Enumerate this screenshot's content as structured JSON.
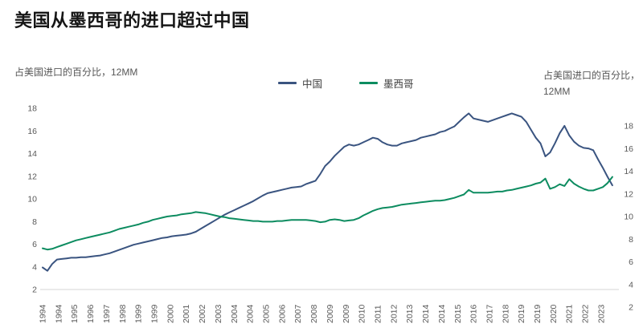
{
  "page": {
    "title": "美国从墨西哥的进口超过中国"
  },
  "chart": {
    "left_axis_label": "占美国进口的百分比，12MM",
    "right_axis_label_line1": "占美国进口的百分比，",
    "right_axis_label_line2": "12MM"
  },
  "chart_data": {
    "type": "line",
    "title": "美国从墨西哥的进口超过中国",
    "xlabel": "",
    "ylabel_left": "占美国进口的百分比，12MM",
    "ylabel_right": "占美国进口的百分比，12MM",
    "grid": false,
    "legend_position": "top-center",
    "x_start": 1994,
    "x_step": 0.25,
    "x_tick_interval_years": 0.8333,
    "x_tick_labels": [
      "1994",
      "1994",
      "1995",
      "1996",
      "1997",
      "1998",
      "1999",
      "1999",
      "2000",
      "2001",
      "2002",
      "2003",
      "2004",
      "2004",
      "2005",
      "2006",
      "2007",
      "2008",
      "2009",
      "2009",
      "2010",
      "2011",
      "2012",
      "2013",
      "2014",
      "2014",
      "2015",
      "2016",
      "2017",
      "2018",
      "2019",
      "2019",
      "2020",
      "2021",
      "2022",
      "2023"
    ],
    "left_axis": {
      "ticks": [
        18,
        16,
        14,
        12,
        10,
        8,
        6,
        4,
        2
      ],
      "range": [
        2,
        18
      ]
    },
    "right_axis": {
      "ticks": [
        18,
        16,
        14,
        12,
        10,
        8,
        6,
        4,
        2
      ],
      "range": [
        2,
        18
      ],
      "offset_down_vs_left_units": 1.56
    },
    "series": [
      {
        "name": "中国",
        "axis": "left",
        "color": "#3a5480",
        "values": [
          3.95,
          3.65,
          4.25,
          4.65,
          4.7,
          4.75,
          4.8,
          4.8,
          4.85,
          4.85,
          4.9,
          4.95,
          5.0,
          5.1,
          5.2,
          5.35,
          5.5,
          5.65,
          5.8,
          5.95,
          6.05,
          6.15,
          6.25,
          6.35,
          6.45,
          6.55,
          6.6,
          6.7,
          6.75,
          6.8,
          6.85,
          6.95,
          7.1,
          7.35,
          7.6,
          7.85,
          8.1,
          8.35,
          8.6,
          8.8,
          9.0,
          9.2,
          9.4,
          9.6,
          9.8,
          10.05,
          10.3,
          10.5,
          10.6,
          10.7,
          10.8,
          10.9,
          11.0,
          11.05,
          11.1,
          11.3,
          11.45,
          11.6,
          12.2,
          12.9,
          13.3,
          13.8,
          14.2,
          14.6,
          14.8,
          14.7,
          14.8,
          15.0,
          15.2,
          15.4,
          15.3,
          15.0,
          14.8,
          14.7,
          14.7,
          14.9,
          15.0,
          15.1,
          15.2,
          15.4,
          15.5,
          15.6,
          15.7,
          15.9,
          16.0,
          16.2,
          16.4,
          16.8,
          17.2,
          17.55,
          17.1,
          17.0,
          16.9,
          16.8,
          16.95,
          17.1,
          17.25,
          17.4,
          17.55,
          17.4,
          17.25,
          16.8,
          16.1,
          15.4,
          14.9,
          13.75,
          14.1,
          14.9,
          15.8,
          16.45,
          15.6,
          15.05,
          14.7,
          14.5,
          14.45,
          14.3,
          13.5,
          12.75,
          11.95,
          11.2
        ]
      },
      {
        "name": "墨西哥",
        "axis": "right",
        "color": "#0d8c60",
        "values": [
          7.2,
          7.08,
          7.15,
          7.3,
          7.45,
          7.6,
          7.75,
          7.9,
          8.0,
          8.1,
          8.2,
          8.3,
          8.4,
          8.5,
          8.6,
          8.75,
          8.9,
          9.0,
          9.1,
          9.2,
          9.3,
          9.45,
          9.55,
          9.7,
          9.8,
          9.9,
          10.0,
          10.05,
          10.1,
          10.2,
          10.25,
          10.3,
          10.4,
          10.35,
          10.3,
          10.2,
          10.1,
          10.0,
          9.95,
          9.85,
          9.8,
          9.75,
          9.7,
          9.65,
          9.6,
          9.6,
          9.55,
          9.55,
          9.55,
          9.6,
          9.6,
          9.65,
          9.7,
          9.7,
          9.7,
          9.7,
          9.65,
          9.6,
          9.5,
          9.55,
          9.7,
          9.75,
          9.7,
          9.6,
          9.65,
          9.7,
          9.85,
          10.1,
          10.3,
          10.5,
          10.65,
          10.75,
          10.8,
          10.85,
          10.95,
          11.05,
          11.1,
          11.15,
          11.2,
          11.25,
          11.3,
          11.35,
          11.4,
          11.4,
          11.45,
          11.55,
          11.65,
          11.8,
          11.95,
          12.35,
          12.1,
          12.1,
          12.1,
          12.1,
          12.15,
          12.2,
          12.2,
          12.3,
          12.35,
          12.45,
          12.55,
          12.65,
          12.75,
          12.9,
          13.0,
          13.35,
          12.45,
          12.6,
          12.85,
          12.7,
          13.3,
          12.9,
          12.65,
          12.45,
          12.3,
          12.3,
          12.45,
          12.6,
          12.95,
          13.5
        ]
      }
    ]
  }
}
